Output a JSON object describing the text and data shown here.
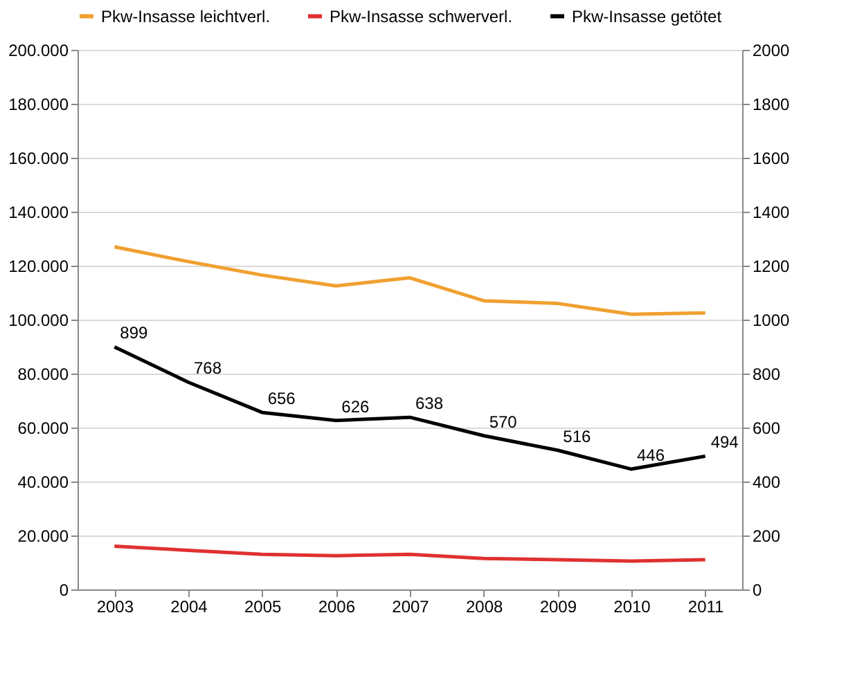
{
  "chart_data": {
    "type": "line",
    "categories": [
      "2003",
      "2004",
      "2005",
      "2006",
      "2007",
      "2008",
      "2009",
      "2010",
      "2011"
    ],
    "series": [
      {
        "name": "Pkw-Insasse leichtverl.",
        "color": "#f0a030",
        "values": [
          127000,
          121500,
          116500,
          112500,
          115500,
          107000,
          106000,
          102000,
          102500
        ]
      },
      {
        "name": "Pkw-Insasse schwerverl.",
        "color": "#e03030",
        "values": [
          16000,
          14500,
          13000,
          12500,
          13000,
          11500,
          11000,
          10500,
          11000
        ]
      },
      {
        "name": "Pkw-Insasse getötet",
        "color": "#000000",
        "axis": "y2",
        "values": [
          899,
          768,
          656,
          626,
          638,
          570,
          516,
          446,
          494
        ],
        "value_labels": [
          "899",
          "768",
          "656",
          "626",
          "638",
          "570",
          "516",
          "446",
          "494"
        ]
      }
    ],
    "ylim": [
      0,
      200000
    ],
    "yticks": [
      {
        "value": 0,
        "label": "0"
      },
      {
        "value": 20000,
        "label": "20.000"
      },
      {
        "value": 40000,
        "label": "40.000"
      },
      {
        "value": 60000,
        "label": "60.000"
      },
      {
        "value": 80000,
        "label": "80.000"
      },
      {
        "value": 100000,
        "label": "100.000"
      },
      {
        "value": 120000,
        "label": "120.000"
      },
      {
        "value": 140000,
        "label": "140.000"
      },
      {
        "value": 160000,
        "label": "160.000"
      },
      {
        "value": 180000,
        "label": "180.000"
      },
      {
        "value": 200000,
        "label": "200.000"
      }
    ],
    "y2lim": [
      0,
      2000
    ],
    "y2ticks": [
      0,
      200,
      400,
      600,
      800,
      1000,
      1200,
      1400,
      1600,
      1800,
      2000
    ],
    "grid": "y",
    "legend": "top",
    "marker": "none",
    "line_style": "solid"
  }
}
